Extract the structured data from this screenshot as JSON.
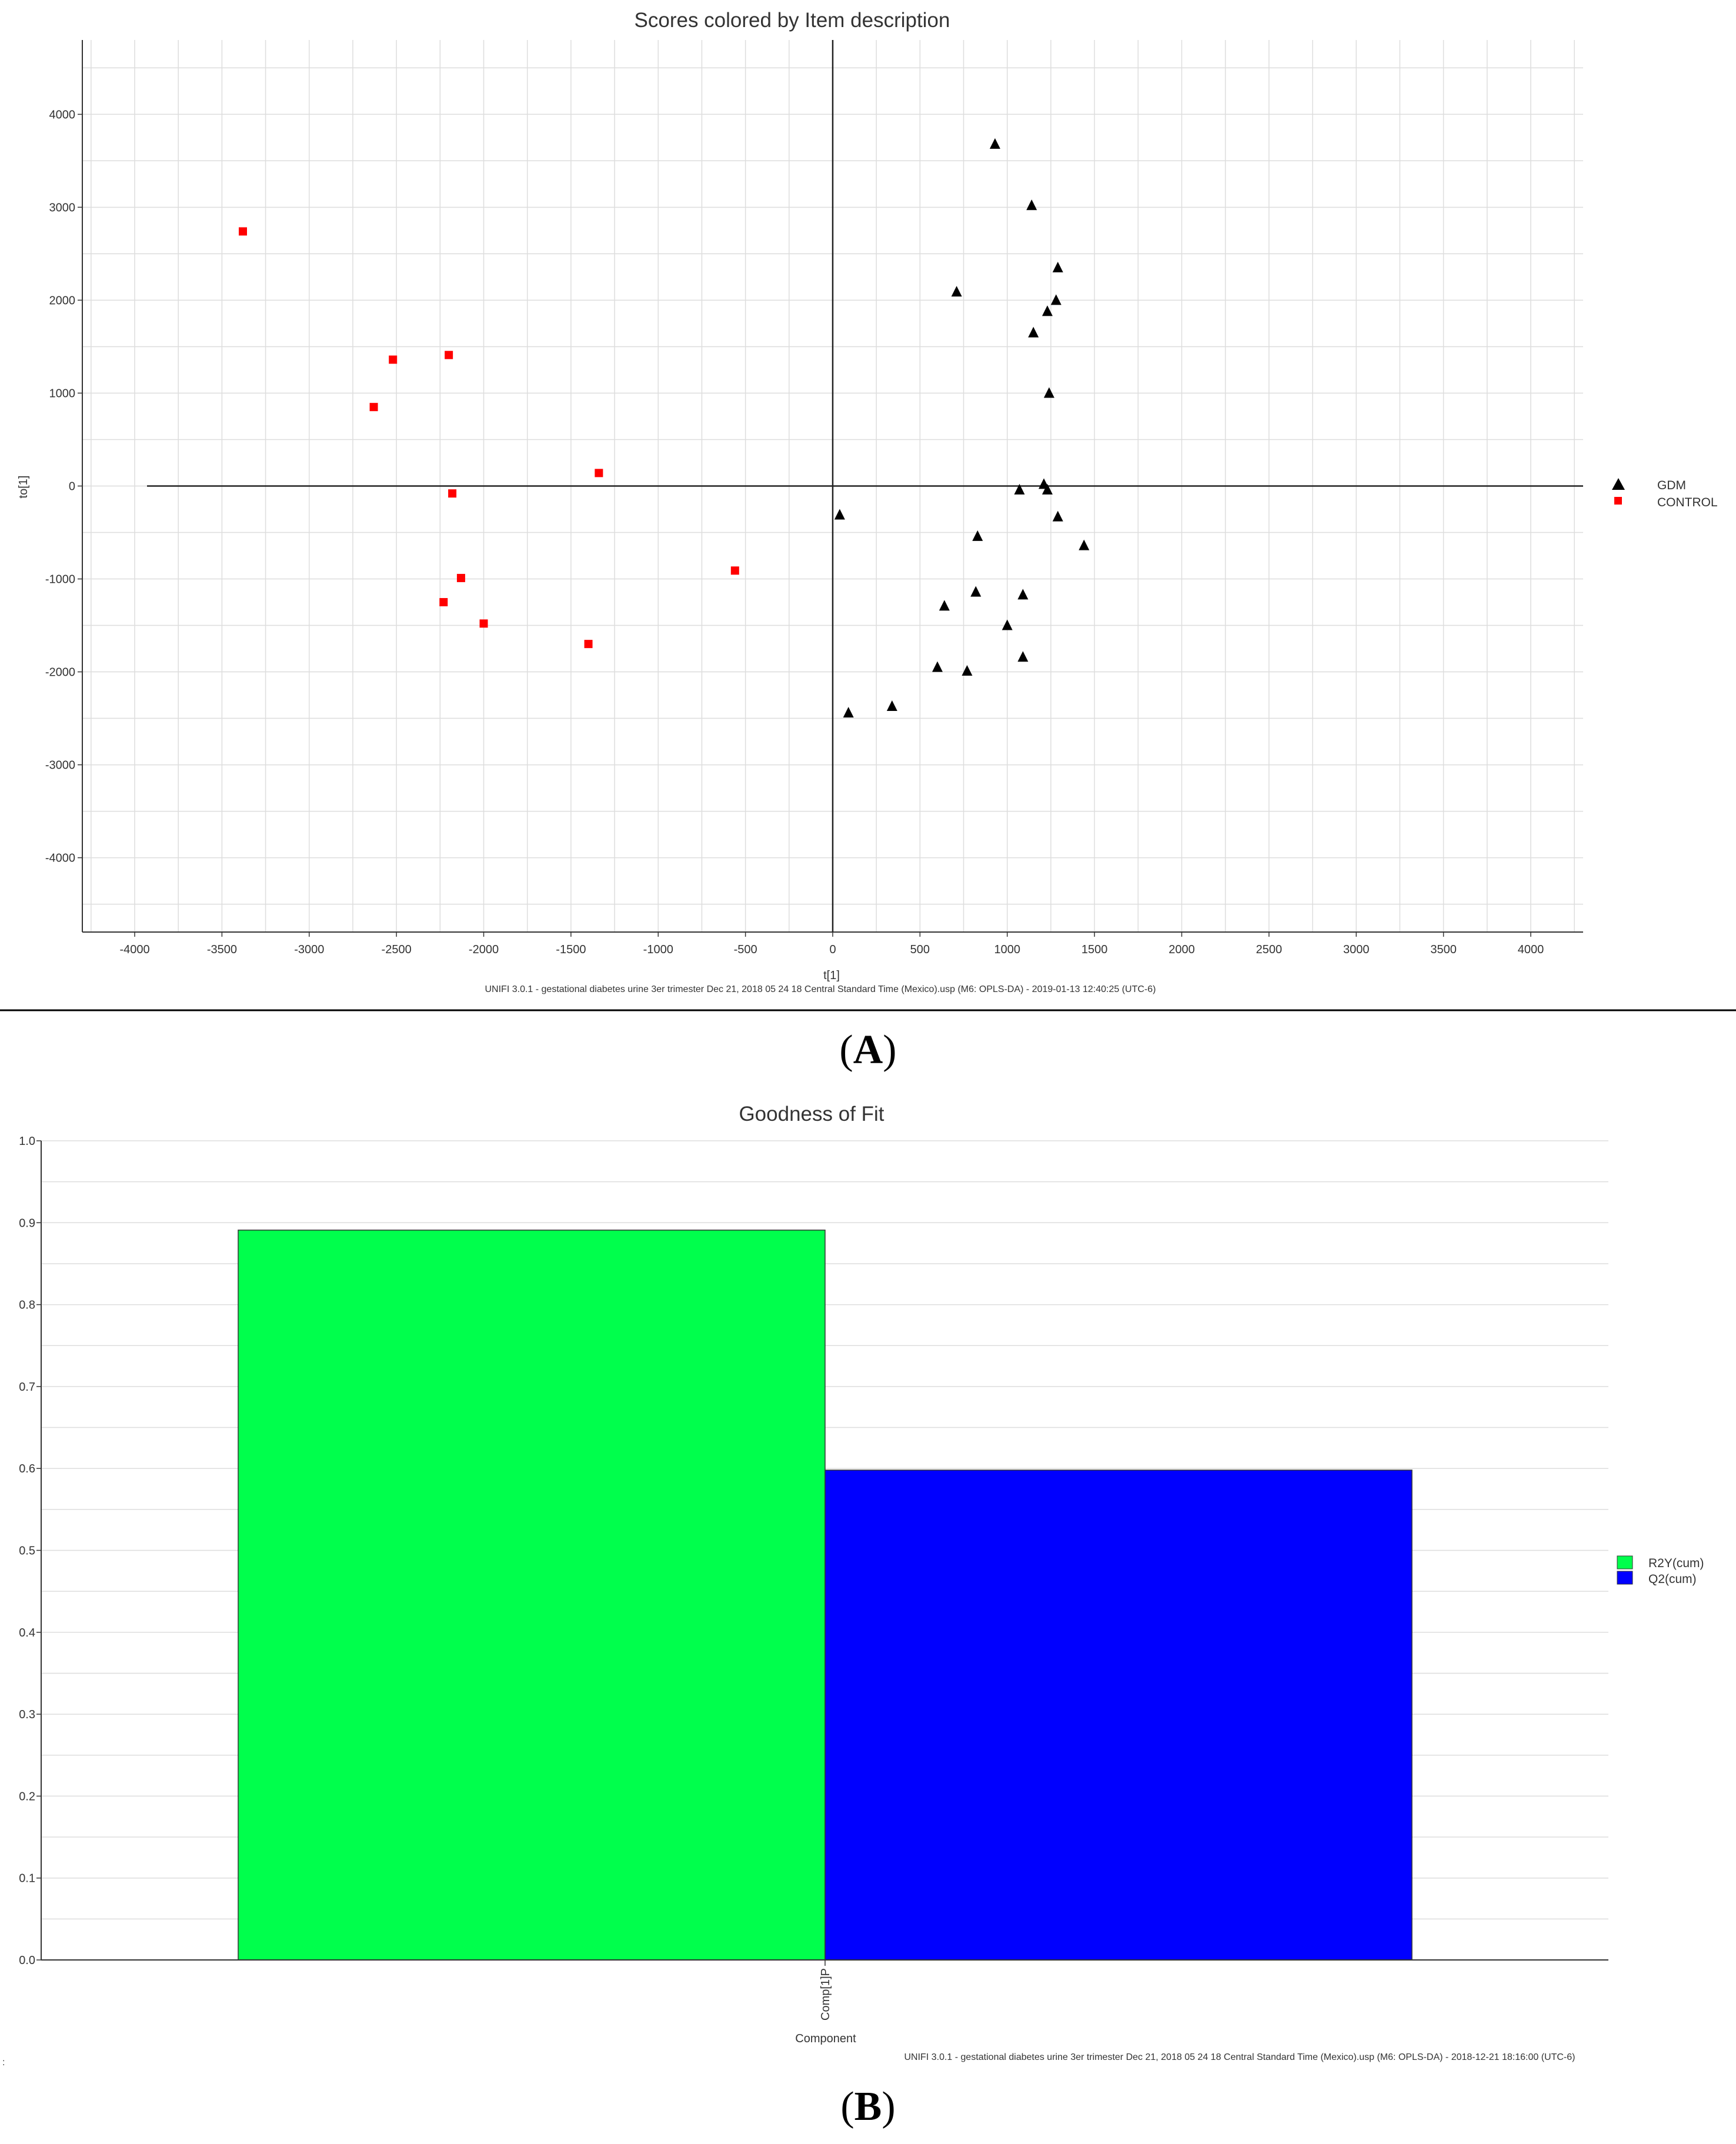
{
  "chart_data": [
    {
      "type": "scatter",
      "panel_label": "A",
      "title": "Scores colored by Item description",
      "xlabel": "t[1]",
      "ylabel": "to[1]",
      "xlim": [
        -4300,
        4300
      ],
      "ylim": [
        -4800,
        4800
      ],
      "xticks": [
        -4000,
        -3500,
        -3000,
        -2500,
        -2000,
        -1500,
        -1000,
        -500,
        0,
        500,
        1000,
        1500,
        2000,
        2500,
        3000,
        3500,
        4000
      ],
      "yticks": [
        -4000,
        -3000,
        -2000,
        -1000,
        0,
        1000,
        2000,
        3000,
        4000
      ],
      "grid": true,
      "legend_position": "right",
      "series": [
        {
          "name": "GDM",
          "marker": "triangle",
          "color": "#000000",
          "points": [
            [
              930,
              3680
            ],
            [
              1140,
              3020
            ],
            [
              1290,
              2350
            ],
            [
              710,
              2090
            ],
            [
              1280,
              2000
            ],
            [
              1230,
              1880
            ],
            [
              1150,
              1650
            ],
            [
              1240,
              1000
            ],
            [
              1210,
              20
            ],
            [
              1230,
              -40
            ],
            [
              1070,
              -40
            ],
            [
              40,
              -310
            ],
            [
              1290,
              -330
            ],
            [
              830,
              -540
            ],
            [
              1440,
              -640
            ],
            [
              820,
              -1140
            ],
            [
              1090,
              -1170
            ],
            [
              640,
              -1290
            ],
            [
              1000,
              -1500
            ],
            [
              1090,
              -1840
            ],
            [
              600,
              -1950
            ],
            [
              770,
              -1990
            ],
            [
              340,
              -2370
            ],
            [
              90,
              -2440
            ]
          ]
        },
        {
          "name": "CONTROL",
          "marker": "square",
          "color": "#ff0000",
          "points": [
            [
              -3380,
              2740
            ],
            [
              -2520,
              1360
            ],
            [
              -2200,
              1410
            ],
            [
              -2630,
              850
            ],
            [
              -1340,
              140
            ],
            [
              -2180,
              -80
            ],
            [
              -560,
              -910
            ],
            [
              -2130,
              -990
            ],
            [
              -2230,
              -1250
            ],
            [
              -2000,
              -1480
            ],
            [
              -1400,
              -1700
            ]
          ]
        }
      ],
      "footer": "UNIFI 3.0.1 - gestational diabetes urine 3er trimester Dec 21, 2018 05 24 18 Central Standard Time (Mexico).usp (M6: OPLS-DA) - 2019-01-13 12:40:25 (UTC-6)"
    },
    {
      "type": "bar",
      "panel_label": "B",
      "title": "Goodness of Fit",
      "xlabel": "Component",
      "ylabel": "",
      "categories": [
        "Comp[1]P"
      ],
      "ylim": [
        0,
        1.0
      ],
      "yticks": [
        0.0,
        0.1,
        0.2,
        0.3,
        0.4,
        0.5,
        0.6,
        0.7,
        0.8,
        0.9,
        1.0
      ],
      "grid": true,
      "legend_position": "right",
      "series": [
        {
          "name": "R2Y(cum)",
          "color": "#00ff4c",
          "values": [
            0.891
          ]
        },
        {
          "name": "Q2(cum)",
          "color": "#0000ff",
          "values": [
            0.598
          ]
        }
      ],
      "footer": "UNIFI 3.0.1 - gestational diabetes urine 3er trimester Dec 21, 2018 05 24 18 Central Standard Time (Mexico).usp (M6: OPLS-DA) - 2018-12-21 18:16:00 (UTC-6)"
    }
  ],
  "captions": {
    "a_open": "(",
    "a_letter": "A",
    "a_close": ")",
    "b_open": "(",
    "b_letter": "B",
    "b_close": ")"
  },
  "misc": {
    "edge_mark": ":"
  }
}
